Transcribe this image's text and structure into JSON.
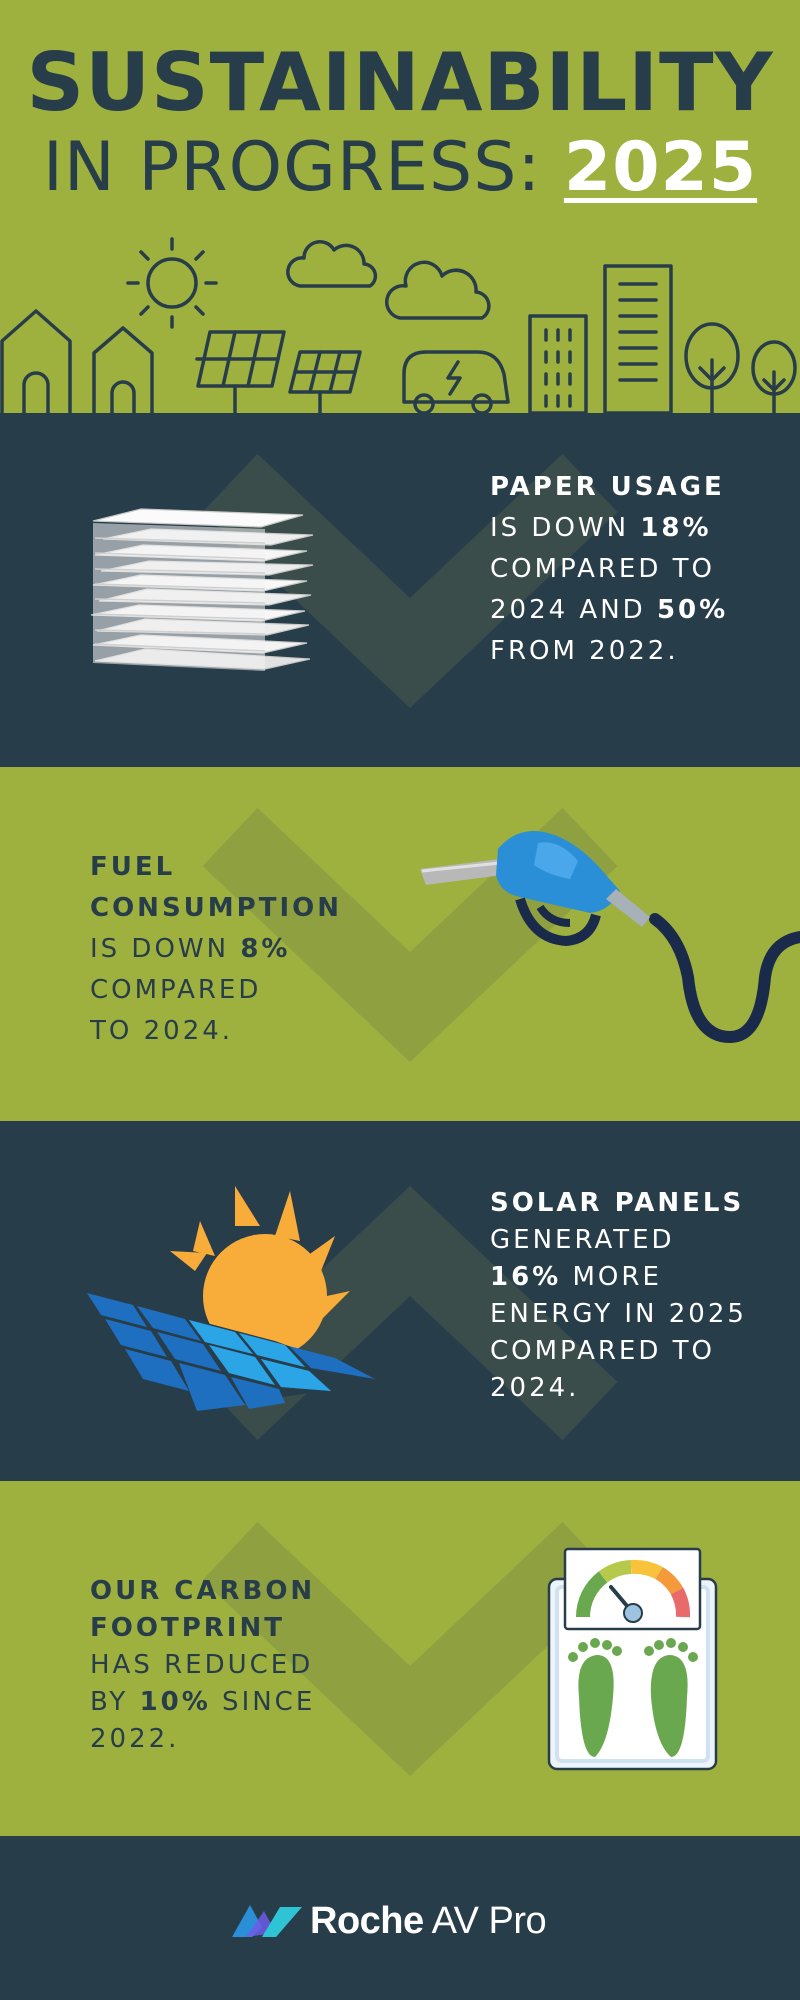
{
  "header": {
    "title_line1": "SUSTAINABILITY",
    "title_line2_prefix": "IN PROGRESS: ",
    "title_year": "2025"
  },
  "sections": [
    {
      "id": "paper",
      "lines": [
        [
          {
            "t": "PAPER USAGE",
            "b": true
          }
        ],
        [
          {
            "t": "IS DOWN "
          },
          {
            "t": "18%",
            "b": true
          }
        ],
        [
          {
            "t": "COMPARED TO"
          }
        ],
        [
          {
            "t": "2024 AND "
          },
          {
            "t": "50%",
            "b": true
          }
        ],
        [
          {
            "t": "FROM 2022."
          }
        ]
      ]
    },
    {
      "id": "fuel",
      "lines": [
        [
          {
            "t": "FUEL",
            "b": true
          }
        ],
        [
          {
            "t": "CONSUMPTION",
            "b": true
          }
        ],
        [
          {
            "t": "IS DOWN "
          },
          {
            "t": "8%",
            "b": true
          }
        ],
        [
          {
            "t": "COMPARED"
          }
        ],
        [
          {
            "t": "TO 2024."
          }
        ]
      ]
    },
    {
      "id": "solar",
      "lines": [
        [
          {
            "t": "SOLAR PANELS",
            "b": true
          }
        ],
        [
          {
            "t": "GENERATED"
          }
        ],
        [
          {
            "t": "16%",
            "b": true
          },
          {
            "t": " MORE"
          }
        ],
        [
          {
            "t": "ENERGY IN 2025"
          }
        ],
        [
          {
            "t": "COMPARED TO"
          }
        ],
        [
          {
            "t": "2024."
          }
        ]
      ]
    },
    {
      "id": "carbon",
      "lines": [
        [
          {
            "t": "OUR CARBON",
            "b": true
          }
        ],
        [
          {
            "t": "FOOTPRINT",
            "b": true
          }
        ],
        [
          {
            "t": "HAS REDUCED"
          }
        ],
        [
          {
            "t": "BY "
          },
          {
            "t": "10%",
            "b": true
          },
          {
            "t": " SINCE"
          }
        ],
        [
          {
            "t": "2022."
          }
        ]
      ]
    }
  ],
  "footer": {
    "brand_bold": "Roche",
    "brand_light": " AV Pro"
  },
  "colors": {
    "green": "#9eb13f",
    "navy": "#283d4a",
    "accent_blue": "#2a8fd6",
    "sun_orange": "#f8ac3a"
  },
  "icons": [
    "paper-stack-icon",
    "fuel-nozzle-icon",
    "solar-panel-icon",
    "bathroom-scale-icon",
    "brand-logo-icon"
  ]
}
